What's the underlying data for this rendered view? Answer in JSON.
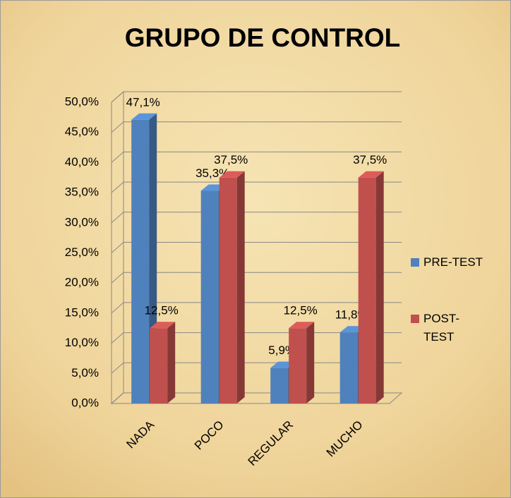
{
  "chart_data": {
    "type": "bar3d",
    "title": "GRUPO DE CONTROL",
    "categories": [
      "NADA",
      "POCO",
      "REGULAR",
      "MUCHO"
    ],
    "series": [
      {
        "name": "PRE-TEST",
        "color": "#4f81bd",
        "values": [
          47.1,
          35.3,
          5.9,
          11.8
        ],
        "value_labels": [
          "47,1%",
          "35,3%",
          "5,9%",
          "11,8%"
        ]
      },
      {
        "name": "POST-TEST",
        "color": "#c0504d",
        "values": [
          12.5,
          37.5,
          12.5,
          37.5
        ],
        "value_labels": [
          "12,5%",
          "37,5%",
          "12,5%",
          "37,5%"
        ]
      }
    ],
    "ylim": [
      0,
      50
    ],
    "yticks": [
      {
        "value": 0,
        "label": "0,0%"
      },
      {
        "value": 5,
        "label": "5,0%"
      },
      {
        "value": 10,
        "label": "10,0%"
      },
      {
        "value": 15,
        "label": "15,0%"
      },
      {
        "value": 20,
        "label": "20,0%"
      },
      {
        "value": 25,
        "label": "25,0%"
      },
      {
        "value": 30,
        "label": "30,0%"
      },
      {
        "value": 35,
        "label": "35,0%"
      },
      {
        "value": 40,
        "label": "40,0%"
      },
      {
        "value": 45,
        "label": "45,0%"
      },
      {
        "value": 50,
        "label": "50,0%"
      }
    ],
    "grid": true,
    "legend": "right"
  }
}
